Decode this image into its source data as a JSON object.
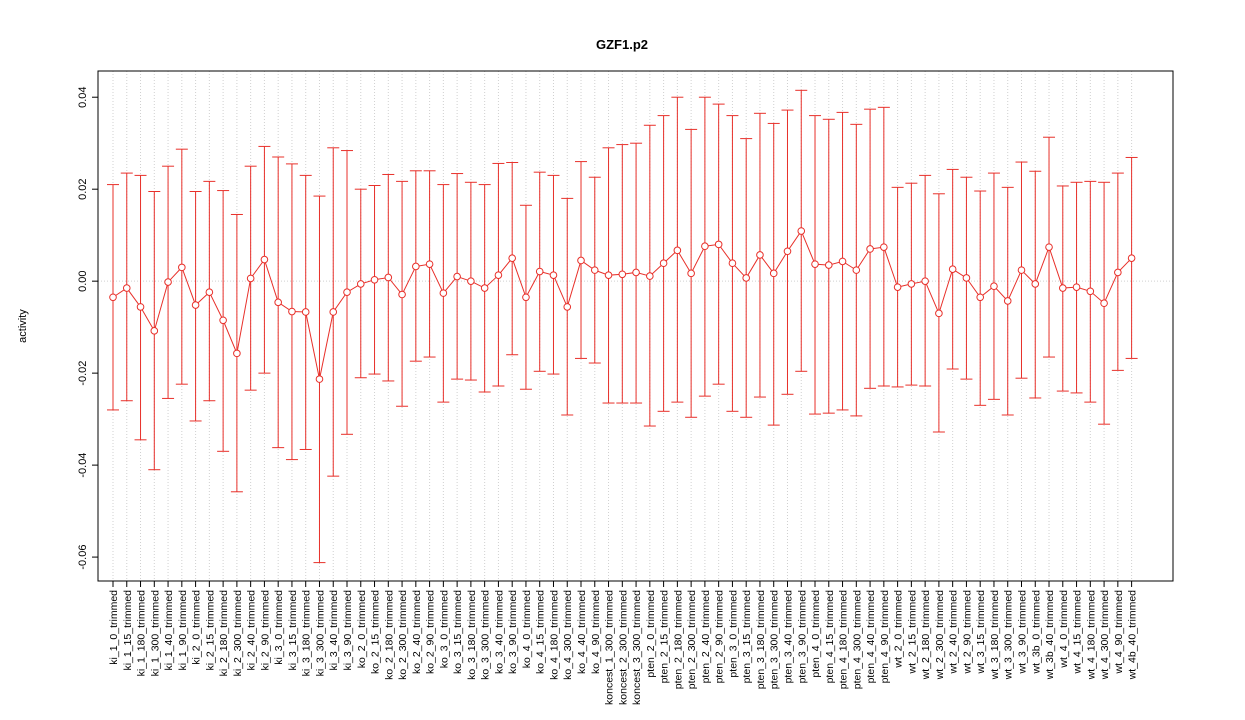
{
  "chart_data": {
    "type": "line",
    "title": "GZF1.p2",
    "ylabel": "activity",
    "categories": [
      "ki_1_0_trimmed",
      "ki_1_15_trimmed",
      "ki_1_180_trimmed",
      "ki_1_300_trimmed",
      "ki_1_40_trimmed",
      "ki_1_90_trimmed",
      "ki_2_0_trimmed",
      "ki_2_15_trimmed",
      "ki_2_180_trimmed",
      "ki_2_300_trimmed",
      "ki_2_40_trimmed",
      "ki_2_90_trimmed",
      "ki_3_0_trimmed",
      "ki_3_15_trimmed",
      "ki_3_180_trimmed",
      "ki_3_300_trimmed",
      "ki_3_40_trimmed",
      "ki_3_90_trimmed",
      "ko_2_0_trimmed",
      "ko_2_15_trimmed",
      "ko_2_180_trimmed",
      "ko_2_300_trimmed",
      "ko_2_40_trimmed",
      "ko_2_90_trimmed",
      "ko_3_0_trimmed",
      "ko_3_15_trimmed",
      "ko_3_180_trimmed",
      "ko_3_300_trimmed",
      "ko_3_40_trimmed",
      "ko_3_90_trimmed",
      "ko_4_0_trimmed",
      "ko_4_15_trimmed",
      "ko_4_180_trimmed",
      "ko_4_300_trimmed",
      "ko_4_40_trimmed",
      "ko_4_90_trimmed",
      "koncest_1_300_trimmed",
      "koncest_2_300_trimmed",
      "koncest_3_300_trimmed",
      "pten_2_0_trimmed",
      "pten_2_15_trimmed",
      "pten_2_180_trimmed",
      "pten_2_300_trimmed",
      "pten_2_40_trimmed",
      "pten_2_90_trimmed",
      "pten_3_0_trimmed",
      "pten_3_15_trimmed",
      "pten_3_180_trimmed",
      "pten_3_300_trimmed",
      "pten_3_40_trimmed",
      "pten_3_90_trimmed",
      "pten_4_0_trimmed",
      "pten_4_15_trimmed",
      "pten_4_180_trimmed",
      "pten_4_300_trimmed",
      "pten_4_40_trimmed",
      "pten_4_90_trimmed",
      "wt_2_0_trimmed",
      "wt_2_15_trimmed",
      "wt_2_180_trimmed",
      "wt_2_300_trimmed",
      "wt_2_40_trimmed",
      "wt_2_90_trimmed",
      "wt_3_15_trimmed",
      "wt_3_180_trimmed",
      "wt_3_300_trimmed",
      "wt_3_90_trimmed",
      "wt_3b_0_trimmed",
      "wt_3b_40_trimmed",
      "wt_4_0_trimmed",
      "wt_4_15_trimmed",
      "wt_4_180_trimmed",
      "wt_4_300_trimmed",
      "wt_4_90_trimmed",
      "wt_4b_40_trimmed"
    ],
    "values": [
      -0.0035,
      -0.0015,
      -0.0056,
      -0.0108,
      -0.0002,
      0.003,
      -0.0052,
      -0.0024,
      -0.0085,
      -0.0157,
      0.0006,
      0.0047,
      -0.0046,
      -0.0066,
      -0.0067,
      -0.0213,
      -0.0067,
      -0.0024,
      -0.0006,
      0.0003,
      0.0008,
      -0.0029,
      0.0032,
      0.0037,
      -0.0026,
      0.001,
      0.0,
      -0.0015,
      0.0013,
      0.005,
      -0.0035,
      0.0021,
      0.0013,
      -0.0056,
      0.0045,
      0.0024,
      0.0013,
      0.0015,
      0.0019,
      0.0011,
      0.0039,
      0.0067,
      0.0017,
      0.0076,
      0.008,
      0.0039,
      0.0007,
      0.0057,
      0.0017,
      0.0065,
      0.0109,
      0.0037,
      0.0035,
      0.0043,
      0.0024,
      0.007,
      0.0074,
      -0.0013,
      -0.0006,
      0.0,
      -0.007,
      0.0026,
      0.0007,
      -0.0035,
      -0.0011,
      -0.0043,
      0.0024,
      -0.0006,
      0.0074,
      -0.0015,
      -0.0013,
      -0.0022,
      -0.0048,
      0.0019,
      0.005
    ],
    "upper": [
      0.021,
      0.0235,
      0.023,
      0.0195,
      0.025,
      0.0287,
      0.0195,
      0.0217,
      0.0197,
      0.0145,
      0.025,
      0.0293,
      0.027,
      0.0255,
      0.023,
      0.0185,
      0.029,
      0.0284,
      0.02,
      0.0208,
      0.0232,
      0.0217,
      0.024,
      0.024,
      0.021,
      0.0234,
      0.0215,
      0.021,
      0.0256,
      0.0258,
      0.0165,
      0.0237,
      0.023,
      0.018,
      0.026,
      0.0226,
      0.029,
      0.0297,
      0.03,
      0.0339,
      0.036,
      0.04,
      0.033,
      0.04,
      0.0385,
      0.036,
      0.031,
      0.0365,
      0.0343,
      0.0372,
      0.0415,
      0.036,
      0.0352,
      0.0367,
      0.0341,
      0.0374,
      0.0378,
      0.0204,
      0.0213,
      0.023,
      0.019,
      0.0243,
      0.0226,
      0.0196,
      0.0235,
      0.0204,
      0.0259,
      0.0239,
      0.0313,
      0.0207,
      0.0215,
      0.0217,
      0.0215,
      0.0235,
      0.0269
    ],
    "lower": [
      -0.028,
      -0.026,
      -0.0345,
      -0.041,
      -0.0255,
      -0.0224,
      -0.0304,
      -0.026,
      -0.037,
      -0.0458,
      -0.0237,
      -0.02,
      -0.0362,
      -0.0388,
      -0.0366,
      -0.0612,
      -0.0424,
      -0.0333,
      -0.021,
      -0.0202,
      -0.0217,
      -0.0272,
      -0.0174,
      -0.0165,
      -0.0263,
      -0.0213,
      -0.0215,
      -0.0241,
      -0.0228,
      -0.016,
      -0.0235,
      -0.0196,
      -0.0202,
      -0.0291,
      -0.0168,
      -0.0178,
      -0.0265,
      -0.0265,
      -0.0265,
      -0.0315,
      -0.0283,
      -0.0263,
      -0.0296,
      -0.025,
      -0.0224,
      -0.0283,
      -0.0296,
      -0.0252,
      -0.0313,
      -0.0246,
      -0.0196,
      -0.0289,
      -0.0287,
      -0.028,
      -0.0293,
      -0.0233,
      -0.0228,
      -0.023,
      -0.0226,
      -0.0228,
      -0.0328,
      -0.0191,
      -0.0213,
      -0.027,
      -0.0257,
      -0.0291,
      -0.0211,
      -0.0254,
      -0.0165,
      -0.0239,
      -0.0243,
      -0.0263,
      -0.0311,
      -0.0194,
      -0.0168
    ],
    "color": "#e8302a",
    "ylim": [
      -0.0652,
      0.0457
    ],
    "yticks": [
      -0.06,
      -0.04,
      -0.02,
      {
        "value": 0,
        "label": "0.00"
      },
      0.02,
      0.04
    ],
    "hline": 0,
    "grid": true
  }
}
